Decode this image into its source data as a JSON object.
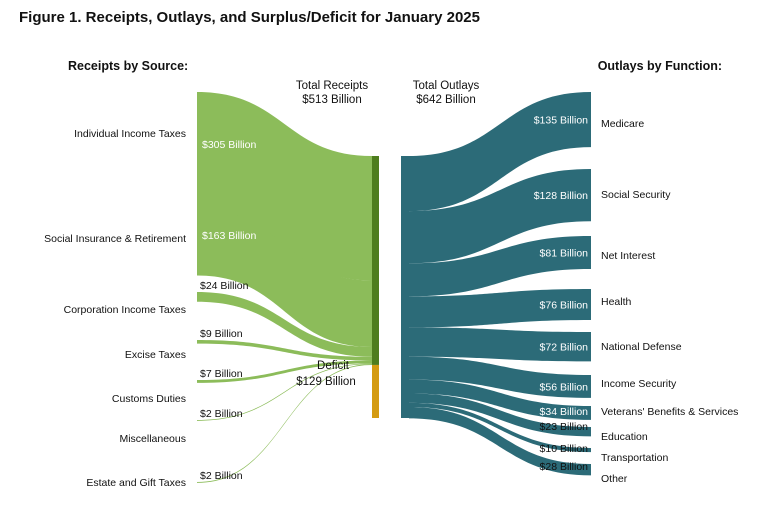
{
  "figure_title": "Figure 1. Receipts, Outlays, and Surplus/Deficit for January 2025",
  "chart_data": {
    "type": "sankey",
    "unit": "Billion",
    "receipts_heading": "Receipts by Source:",
    "outlays_heading": "Outlays by Function:",
    "total_receipts": {
      "label": "Total Receipts",
      "value_text": "$513 Billion",
      "value": 513
    },
    "total_outlays": {
      "label": "Total Outlays",
      "value_text": "$642 Billion",
      "value": 642
    },
    "deficit": {
      "label": "Deficit",
      "value_text": "$129 Billion",
      "value": 129
    },
    "receipts": [
      {
        "name": "Individual Income Taxes",
        "value": 305,
        "value_text": "$305 Billion"
      },
      {
        "name": "Social Insurance & Retirement",
        "value": 163,
        "value_text": "$163 Billion"
      },
      {
        "name": "Corporation Income Taxes",
        "value": 24,
        "value_text": "$24 Billion"
      },
      {
        "name": "Excise Taxes",
        "value": 9,
        "value_text": "$9 Billion"
      },
      {
        "name": "Customs Duties",
        "value": 7,
        "value_text": "$7 Billion"
      },
      {
        "name": "Miscellaneous",
        "value": 2,
        "value_text": "$2 Billion"
      },
      {
        "name": "Estate and Gift Taxes",
        "value": 2,
        "value_text": "$2 Billion"
      }
    ],
    "outlays": [
      {
        "name": "Medicare",
        "value": 135,
        "value_text": "$135 Billion"
      },
      {
        "name": "Social Security",
        "value": 128,
        "value_text": "$128 Billion"
      },
      {
        "name": "Net Interest",
        "value": 81,
        "value_text": "$81 Billion"
      },
      {
        "name": "Health",
        "value": 76,
        "value_text": "$76 Billion"
      },
      {
        "name": "National Defense",
        "value": 72,
        "value_text": "$72 Billion"
      },
      {
        "name": "Income Security",
        "value": 56,
        "value_text": "$56 Billion"
      },
      {
        "name": "Veterans' Benefits & Services",
        "value": 34,
        "value_text": "$34 Billion"
      },
      {
        "name": "Education",
        "value": 23,
        "value_text": "$23 Billion"
      },
      {
        "name": "Transportation",
        "value": 10,
        "value_text": "$10 Billion"
      },
      {
        "name": "Other",
        "value": 28,
        "value_text": "$28 Billion"
      }
    ],
    "colors": {
      "receipts": "#8cbc5a",
      "receipts_bar": "#4e7d1e",
      "deficit": "#d49b12",
      "outlays": "#2c6b78"
    }
  }
}
